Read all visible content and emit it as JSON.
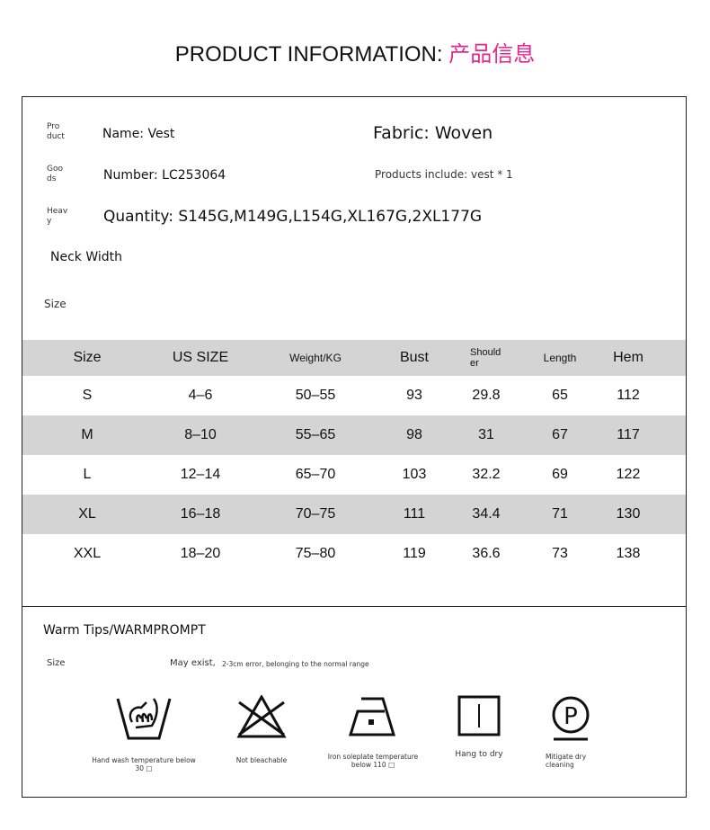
{
  "header": {
    "title_en": "PRODUCT INFORMATION: ",
    "title_cn": "产品信息",
    "accent_color": "#e5268f"
  },
  "info": {
    "product_label": "Pro duct",
    "name": "Name: Vest",
    "fabric": "Fabric: Woven",
    "goods_label": "Goo ds",
    "number": "Number: LC253064",
    "includes": "Products include: vest * 1",
    "heavy_label": "Heav y",
    "quantity": "Quantity: S145G,M149G,L154G,XL167G,2XL177G",
    "neck_width": "Neck Width",
    "size_label": "Size"
  },
  "size_table": {
    "headers": [
      "Size",
      "US SIZE",
      "Weight/KG",
      "Bust",
      "Should er",
      "Length",
      "Hem"
    ],
    "rows": [
      [
        "S",
        "4–6",
        "50–55",
        "93",
        "29.8",
        "65",
        "112"
      ],
      [
        "M",
        "8–10",
        "55–65",
        "98",
        "31",
        "67",
        "117"
      ],
      [
        "L",
        "12–14",
        "65–70",
        "103",
        "32.2",
        "69",
        "122"
      ],
      [
        "XL",
        "16–18",
        "70–75",
        "111",
        "34.4",
        "71",
        "130"
      ],
      [
        "XXL",
        "18–20",
        "75–80",
        "119",
        "36.6",
        "73",
        "138"
      ]
    ]
  },
  "tips": {
    "title": "Warm Tips/WARMPROMPT",
    "size_label": "Size",
    "may_exist": "May exist,",
    "error_note": "2-3cm error, belonging to the normal range",
    "care": [
      {
        "icon": "hand-wash-icon",
        "label": "Hand wash temperature below 30 □"
      },
      {
        "icon": "no-bleach-icon",
        "label": "Not bleachable"
      },
      {
        "icon": "iron-icon",
        "label": "Iron soleplate temperature below 110 □"
      },
      {
        "icon": "hang-dry-icon",
        "label": "Hang to dry"
      },
      {
        "icon": "dry-clean-icon",
        "label": "Mitigate dry cleaning"
      }
    ]
  }
}
